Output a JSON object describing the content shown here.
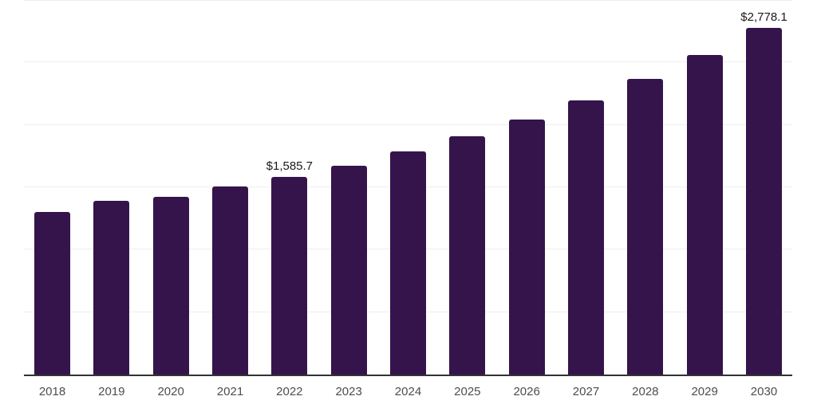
{
  "chart": {
    "background_color": "#ffffff"
  },
  "chart_data": {
    "type": "bar",
    "title": "",
    "xlabel": "",
    "ylabel": "",
    "categories": [
      "2018",
      "2019",
      "2020",
      "2021",
      "2022",
      "2023",
      "2024",
      "2025",
      "2026",
      "2027",
      "2028",
      "2029",
      "2030"
    ],
    "values": [
      1300,
      1390,
      1425,
      1505,
      1585.7,
      1675,
      1790,
      1910,
      2045,
      2195,
      2370,
      2560,
      2778.1
    ],
    "value_labels": {
      "2022": "$1,585.7",
      "2030": "$2,778.1"
    },
    "ylim": [
      0,
      3000
    ],
    "gridline_values": [
      500,
      1000,
      1500,
      2000,
      2500,
      3000
    ],
    "grid": true,
    "legend": false,
    "y_axis_labels_visible": false,
    "bar_color": "#35144C",
    "grid_color": "#efefef",
    "axis_line_color": "#333333",
    "tick_label_color": "#4d4d4d",
    "value_label_color": "#1a1a1a"
  }
}
